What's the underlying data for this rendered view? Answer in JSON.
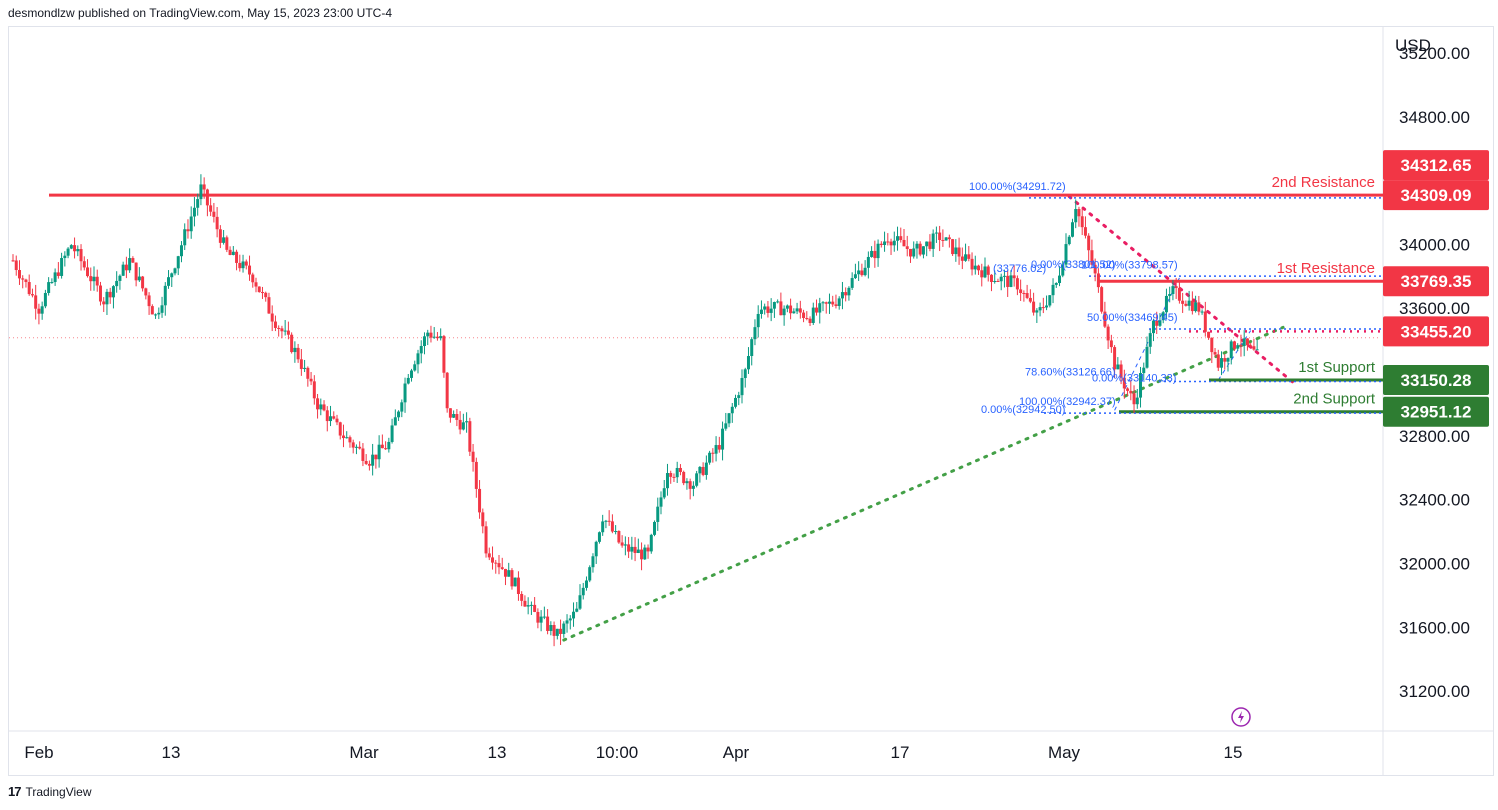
{
  "header": {
    "attribution": "desmondlzw published on TradingView.com, May 15, 2023 23:00 UTC-4"
  },
  "footer": {
    "brand": "TradingView"
  },
  "colors": {
    "up": "#089981",
    "down": "#f23645",
    "resistance": "#f23645",
    "support": "#2e7d32",
    "fib": "#2962ff",
    "trend_up": "#43a047",
    "trend_down": "#e91e63"
  },
  "chart_data": {
    "type": "candlestick",
    "currency": "USD",
    "ylim": [
      30950,
      35300
    ],
    "y_ticks": [
      35200,
      34800,
      34000,
      33600,
      32800,
      32400,
      32000,
      31600,
      31200
    ],
    "y_tick_labels": [
      "35200.00",
      "34800.00",
      "34000.00",
      "33600.00",
      "32800.00",
      "32400.00",
      "32000.00",
      "31600.00",
      "31200.00"
    ],
    "x_ticks": [
      "Feb",
      "13",
      "Mar",
      "13",
      "10:00",
      "Apr",
      "17",
      "May",
      "15"
    ],
    "levels": [
      {
        "name": "2nd Resistance",
        "value": 34309.09,
        "tag": "34309.09",
        "kind": "resistance"
      },
      {
        "name": "1st Resistance",
        "value": 33769.35,
        "tag": "33769.35",
        "kind": "resistance"
      },
      {
        "name": "",
        "value": 33455.2,
        "tag": "33455.20",
        "kind": "resistance"
      },
      {
        "name": "1st Support",
        "value": 33150.28,
        "tag": "33150.28",
        "kind": "support"
      },
      {
        "name": "2nd Support",
        "value": 32951.12,
        "tag": "32951.12",
        "kind": "support"
      }
    ],
    "extra_price_tag": "34312.65",
    "fib_labels": [
      "100.00%(34291.72)",
      "0.00%(33801.52)",
      "100.00%(33798.57)",
      "(33776.02)",
      "50.00%(33469.45)",
      "78.60%(33126.66)",
      "0.00%(33140.33)",
      "100.00%(32942.37)",
      "0.00%(32942.50)"
    ],
    "price_path": [
      {
        "t": 0,
        "p": 33900
      },
      {
        "t": 4,
        "p": 33600
      },
      {
        "t": 9,
        "p": 34000
      },
      {
        "t": 14,
        "p": 33650
      },
      {
        "t": 18,
        "p": 33900
      },
      {
        "t": 22,
        "p": 33550
      },
      {
        "t": 26,
        "p": 34000
      },
      {
        "t": 29,
        "p": 34350
      },
      {
        "t": 33,
        "p": 33950
      },
      {
        "t": 37,
        "p": 33800
      },
      {
        "t": 40,
        "p": 33550
      },
      {
        "t": 44,
        "p": 33300
      },
      {
        "t": 47,
        "p": 33000
      },
      {
        "t": 51,
        "p": 32800
      },
      {
        "t": 55,
        "p": 32650
      },
      {
        "t": 58,
        "p": 32750
      },
      {
        "t": 61,
        "p": 33200
      },
      {
        "t": 64,
        "p": 33450
      },
      {
        "t": 66,
        "p": 33400
      },
      {
        "t": 67,
        "p": 32950
      },
      {
        "t": 70,
        "p": 32850
      },
      {
        "t": 73,
        "p": 32100
      },
      {
        "t": 77,
        "p": 31900
      },
      {
        "t": 80,
        "p": 31700
      },
      {
        "t": 84,
        "p": 31550
      },
      {
        "t": 87,
        "p": 31700
      },
      {
        "t": 91,
        "p": 32300
      },
      {
        "t": 94,
        "p": 32100
      },
      {
        "t": 98,
        "p": 32050
      },
      {
        "t": 101,
        "p": 32600
      },
      {
        "t": 105,
        "p": 32500
      },
      {
        "t": 109,
        "p": 32750
      },
      {
        "t": 113,
        "p": 33200
      },
      {
        "t": 115,
        "p": 33600
      },
      {
        "t": 119,
        "p": 33600
      },
      {
        "t": 123,
        "p": 33550
      },
      {
        "t": 127,
        "p": 33650
      },
      {
        "t": 131,
        "p": 33850
      },
      {
        "t": 135,
        "p": 34050
      },
      {
        "t": 139,
        "p": 33950
      },
      {
        "t": 143,
        "p": 34050
      },
      {
        "t": 147,
        "p": 33900
      },
      {
        "t": 151,
        "p": 33800
      },
      {
        "t": 155,
        "p": 33750
      },
      {
        "t": 158,
        "p": 33550
      },
      {
        "t": 161,
        "p": 33750
      },
      {
        "t": 164,
        "p": 34250
      },
      {
        "t": 167,
        "p": 33800
      },
      {
        "t": 170,
        "p": 33250
      },
      {
        "t": 173,
        "p": 33000
      },
      {
        "t": 176,
        "p": 33500
      },
      {
        "t": 179,
        "p": 33700
      },
      {
        "t": 183,
        "p": 33600
      },
      {
        "t": 186,
        "p": 33250
      },
      {
        "t": 189,
        "p": 33400
      },
      {
        "t": 192,
        "p": 33300
      }
    ]
  }
}
